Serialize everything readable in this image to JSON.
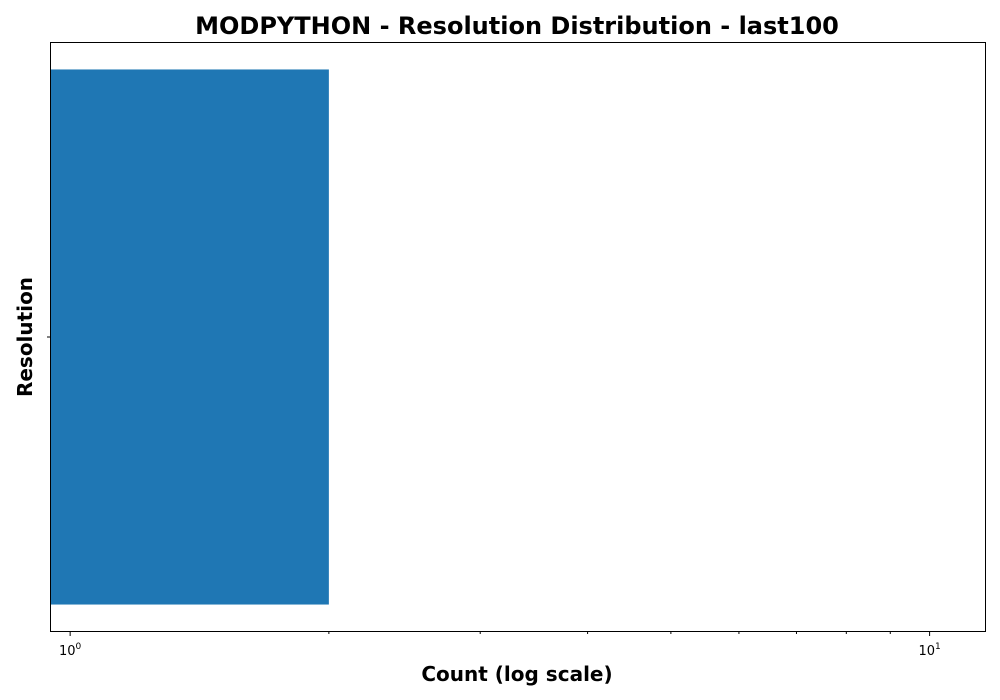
{
  "chart_data": {
    "type": "bar",
    "orientation": "horizontal",
    "title": "MODPYTHON - Resolution Distribution - last100",
    "xlabel": "Count (log scale)",
    "ylabel": "Resolution",
    "x_scale": "log",
    "xlim": [
      0.95,
      11.6
    ],
    "x_ticks": [
      {
        "value": 1,
        "base": "10",
        "exp": "0"
      },
      {
        "value": 10,
        "base": "10",
        "exp": "1"
      }
    ],
    "categories": [
      ""
    ],
    "values": [
      2
    ],
    "colors": {
      "bar": "#1f77b4"
    },
    "grid": false,
    "legend": "none"
  }
}
